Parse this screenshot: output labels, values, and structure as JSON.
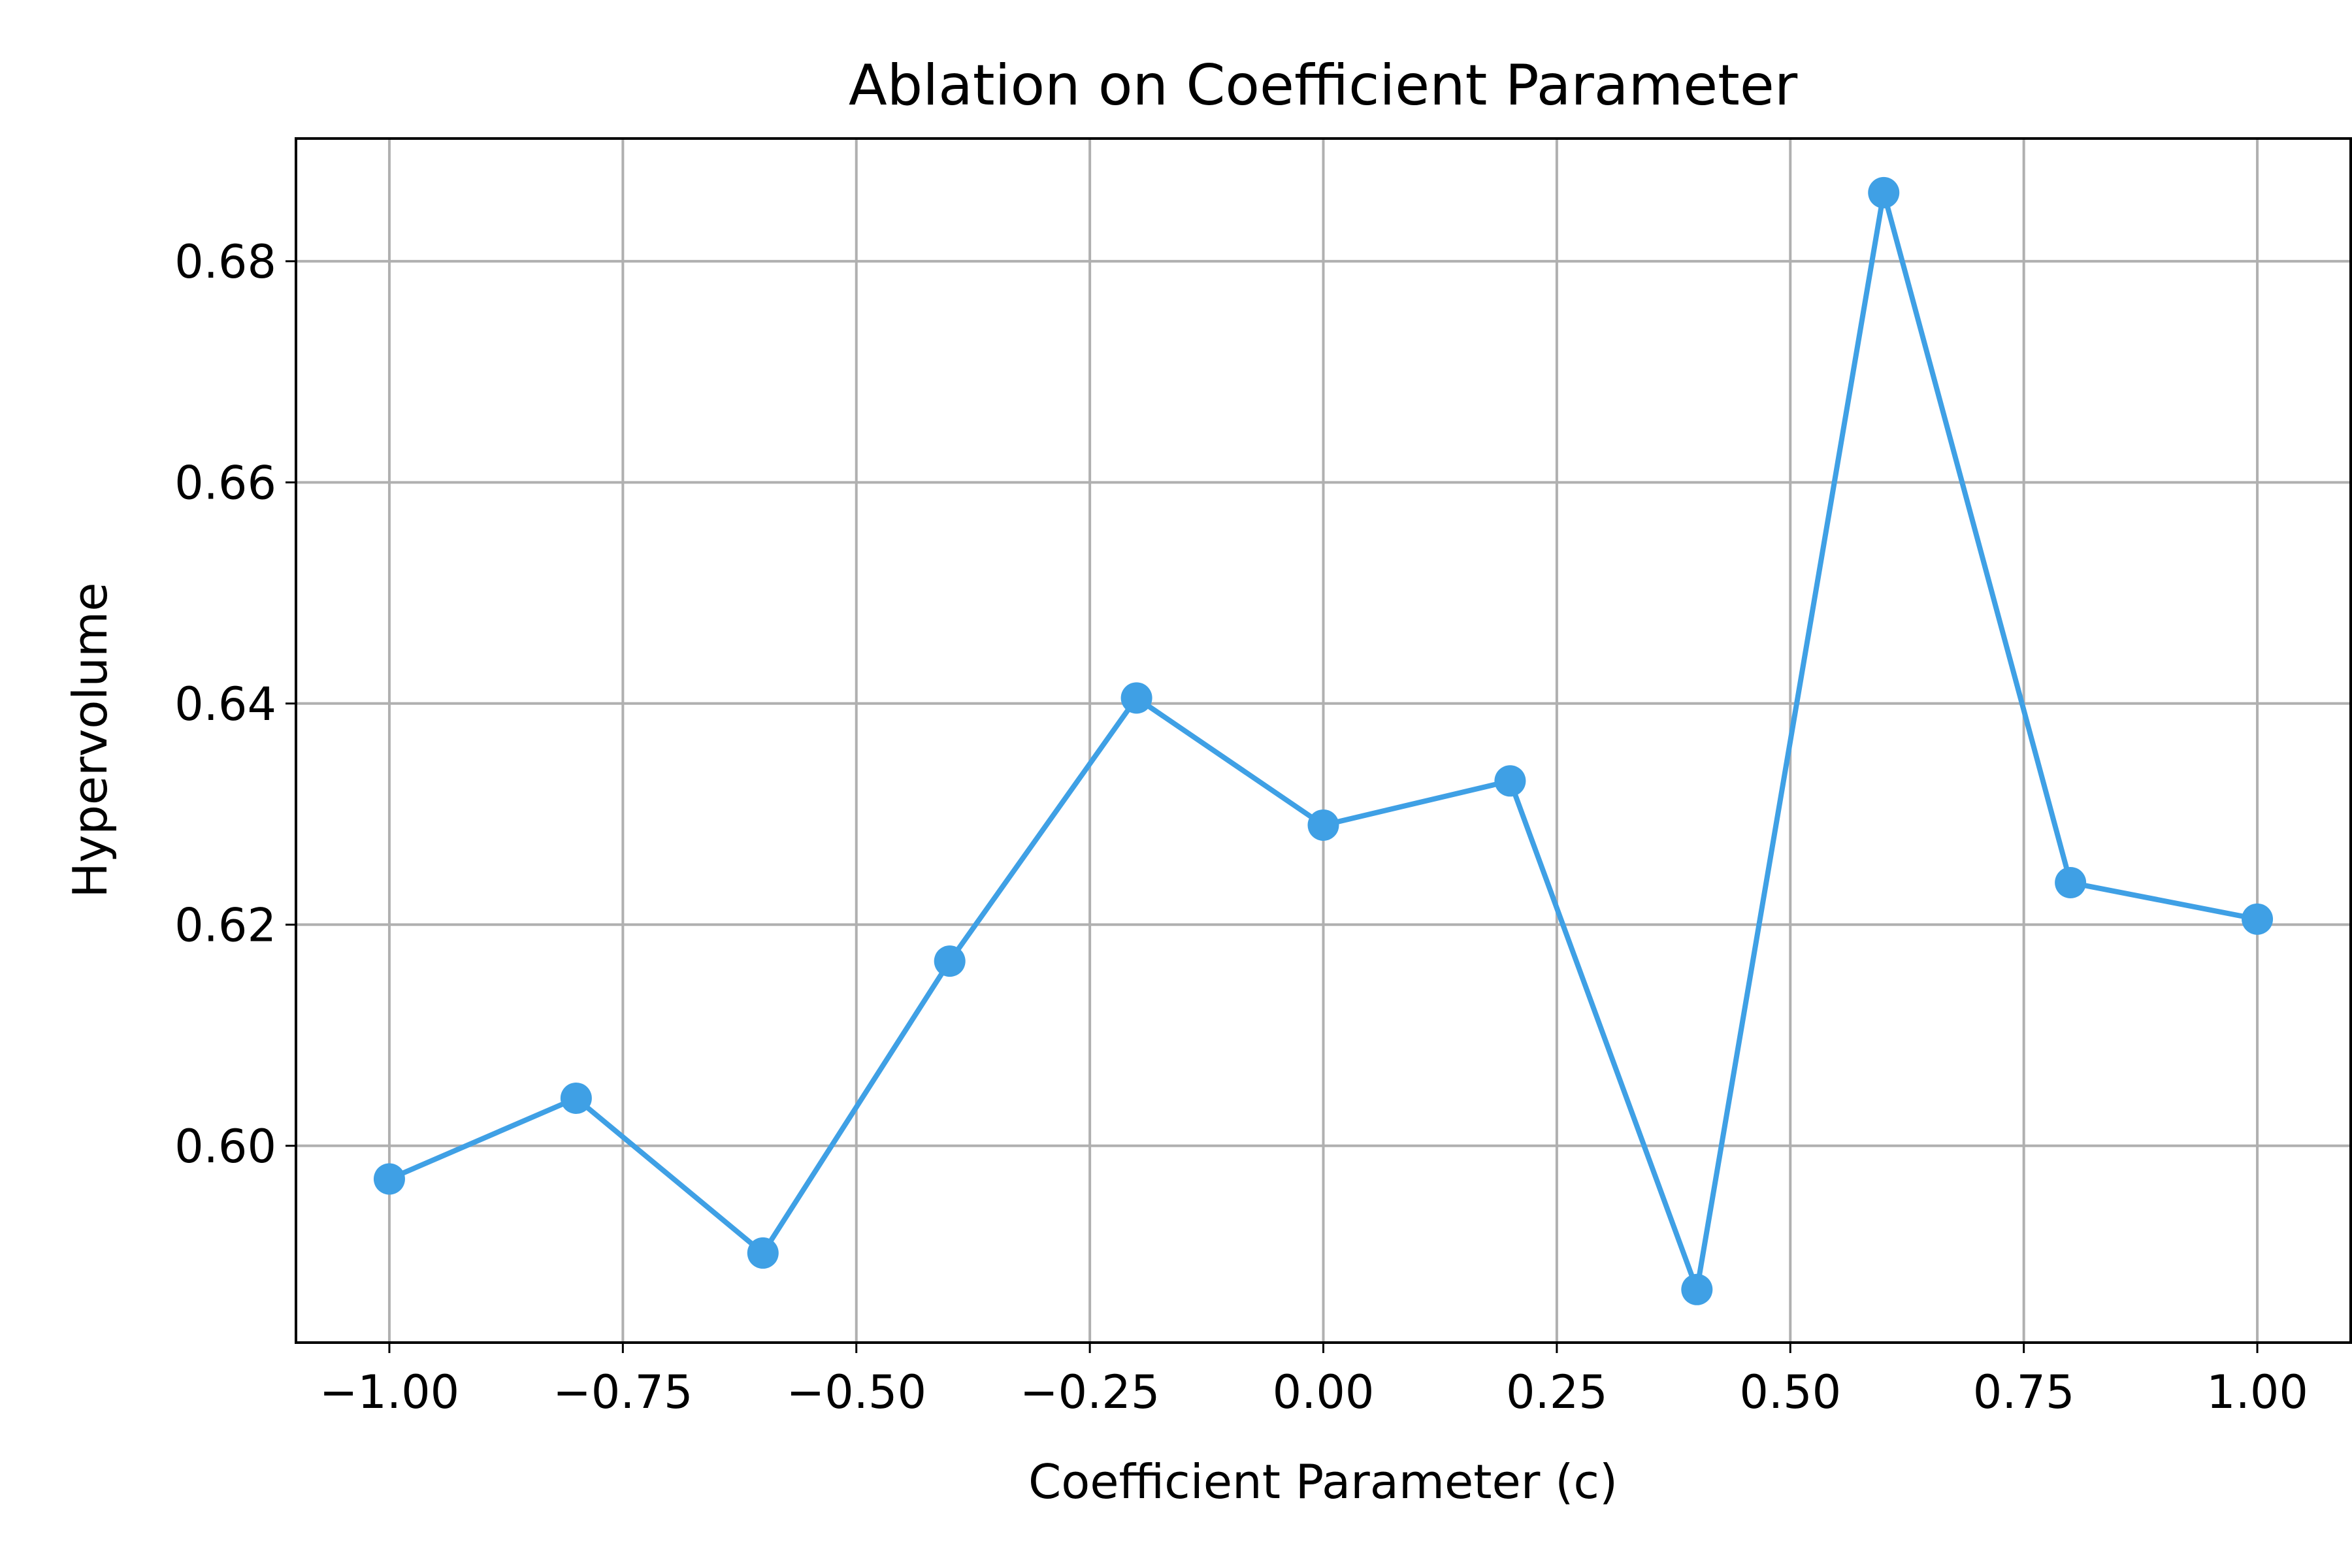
{
  "chart_data": {
    "type": "line",
    "title": "Ablation on Coefficient Parameter",
    "xlabel": "Coefficient Parameter (c)",
    "ylabel": "Hypervolume",
    "xlim": [
      -1.1,
      1.1
    ],
    "ylim": [
      0.5822,
      0.6911
    ],
    "x_ticks": [
      -1.0,
      -0.75,
      -0.5,
      -0.25,
      0.0,
      0.25,
      0.5,
      0.75,
      1.0
    ],
    "x_tick_labels": [
      "−1.00",
      "−0.75",
      "−0.50",
      "−0.25",
      "0.00",
      "0.25",
      "0.50",
      "0.75",
      "1.00"
    ],
    "y_ticks": [
      0.6,
      0.62,
      0.64,
      0.66,
      0.68
    ],
    "y_tick_labels": [
      "0.60",
      "0.62",
      "0.64",
      "0.66",
      "0.68"
    ],
    "grid": true,
    "series": [
      {
        "color": "#3fa0e5",
        "marker": "circle",
        "x": [
          -1.0,
          -0.8,
          -0.6,
          -0.4,
          -0.2,
          0.0,
          0.2,
          0.4,
          0.6,
          0.8,
          1.0
        ],
        "y": [
          0.597,
          0.6043,
          0.5903,
          0.6167,
          0.6405,
          0.629,
          0.633,
          0.587,
          0.6862,
          0.6238,
          0.6205
        ]
      }
    ]
  }
}
